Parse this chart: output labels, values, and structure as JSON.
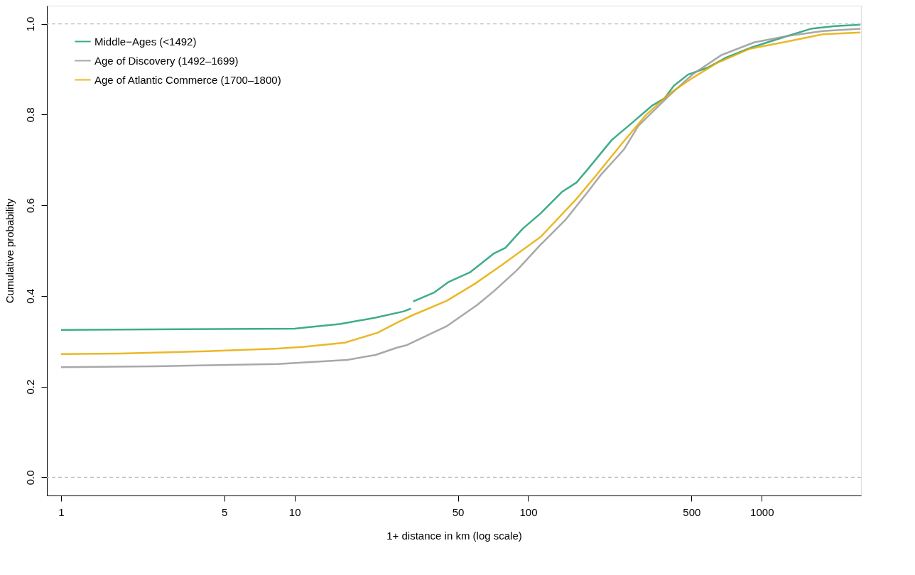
{
  "chart_data": {
    "type": "line",
    "xlabel": "1+ distance in km (log scale)",
    "ylabel": "Cumulative probability",
    "log": "x",
    "grid": false,
    "legend": "top left",
    "xlim": [
      0.87,
      2660
    ],
    "ylim": [
      -0.04,
      1.04
    ],
    "xticks": [
      1,
      5,
      10,
      50,
      100,
      500,
      1000
    ],
    "yticks": [
      {
        "value": 0,
        "label": "0.0"
      },
      0.2,
      0.4,
      0.6,
      0.8,
      {
        "value": 1,
        "label": "1.0"
      }
    ],
    "ref_lines": [
      {
        "axis": "y",
        "value": 0,
        "label": null,
        "color": "#bebebe",
        "line_style": "dashed"
      },
      {
        "axis": "y",
        "value": 1,
        "label": null,
        "color": "#bebebe",
        "line_style": "dashed"
      }
    ],
    "series": [
      {
        "name": "Middle−Ages (<1492)",
        "color": "#1b9e77",
        "x": [
          1,
          10,
          11.0,
          15.6,
          22.2,
          29.3,
          31.5,
          31.8,
          32.2,
          39.7,
          45.7,
          56.3,
          71.5,
          79.9,
          94.6,
          113,
          140,
          161,
          181,
          228,
          276,
          340,
          384,
          420,
          483,
          584,
          700,
          906,
          1286,
          1621,
          2057,
          2645
        ],
        "values": [
          0.325,
          0.328,
          0.33,
          0.338,
          0.352,
          0.366,
          0.372,
          null,
          0.388,
          0.408,
          0.431,
          0.452,
          0.494,
          0.506,
          0.548,
          0.582,
          0.63,
          0.65,
          0.681,
          0.744,
          0.78,
          0.82,
          0.836,
          0.863,
          0.888,
          0.903,
          0.925,
          0.948,
          0.973,
          0.989,
          0.995,
          0.998
        ]
      },
      {
        "name": "Age of Discovery (1492–1699)",
        "color": "#999999",
        "x": [
          1,
          2.54,
          8.51,
          16.8,
          22.2,
          27.4,
          30.0,
          44.7,
          60.4,
          71.5,
          90.0,
          113,
          144,
          181,
          204,
          257,
          296,
          400,
          507,
          671,
          926,
          1286,
          1825,
          2645
        ],
        "values": [
          0.243,
          0.245,
          0.25,
          0.259,
          0.27,
          0.286,
          0.291,
          0.333,
          0.38,
          0.411,
          0.458,
          0.513,
          0.567,
          0.631,
          0.666,
          0.723,
          0.775,
          0.841,
          0.889,
          0.931,
          0.959,
          0.973,
          0.984,
          0.989
        ]
      },
      {
        "name": "Age of Atlantic Commerce (1700–1800)",
        "color": "#e6ab02",
        "x": [
          1,
          1.79,
          4.23,
          8.51,
          11.0,
          16.4,
          22.7,
          27.4,
          31.5,
          44.7,
          59.2,
          76.6,
          113,
          161,
          194,
          252,
          318,
          400,
          507,
          639,
          888,
          1286,
          1825,
          2645
        ],
        "values": [
          0.272,
          0.273,
          0.278,
          0.284,
          0.288,
          0.297,
          0.319,
          0.341,
          0.356,
          0.389,
          0.427,
          0.467,
          0.53,
          0.614,
          0.664,
          0.736,
          0.798,
          0.845,
          0.881,
          0.913,
          0.945,
          0.961,
          0.977,
          0.981
        ]
      }
    ]
  }
}
